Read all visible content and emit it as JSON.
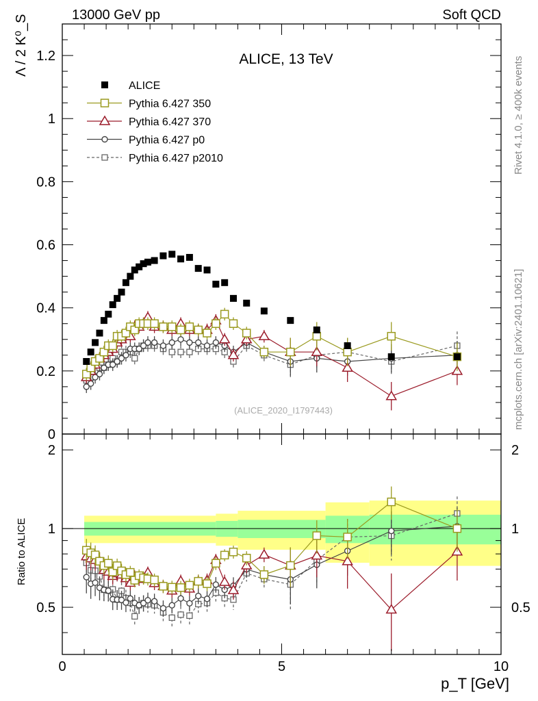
{
  "header": {
    "left": "13000 GeV pp",
    "right": "Soft QCD",
    "side_top": "Rivet 4.1.0, ≥ 400k events",
    "side_bottom": "mcplots.cern.ch [arXiv:2401.10621]",
    "analysis_id": "(ALICE_2020_I1797443)"
  },
  "colors": {
    "alice": "#000000",
    "p350": "#9a9a1f",
    "p370": "#9b1b2a",
    "p0": "#444444",
    "p2010": "#666666",
    "band_inner": "#99ff99",
    "band_outer": "#ffff88"
  },
  "chart_data": {
    "type": "scatter",
    "title": "ALICE, 13 TeV",
    "xlabel": "p_T [GeV]",
    "ylabel": "Λ / 2 K⁰_S",
    "ratio_ylabel": "Ratio to ALICE",
    "xlim": [
      0,
      10
    ],
    "ylim": [
      0,
      1.3
    ],
    "ratio_ylim": [
      0.33,
      2.3
    ],
    "xticks": [
      "0",
      "5",
      "10"
    ],
    "yticks": [
      "0.2",
      "0.4",
      "0.6",
      "0.8",
      "1",
      "1.2"
    ],
    "ratio_yticks": [
      "0.5",
      "1",
      "2"
    ],
    "legend": [
      "ALICE",
      "Pythia 6.427 350",
      "Pythia 6.427 370",
      "Pythia 6.427 p0",
      "Pythia 6.427 p2010"
    ],
    "x": [
      0.55,
      0.65,
      0.75,
      0.85,
      0.95,
      1.05,
      1.15,
      1.25,
      1.35,
      1.45,
      1.55,
      1.65,
      1.75,
      1.85,
      1.95,
      2.1,
      2.3,
      2.5,
      2.7,
      2.9,
      3.1,
      3.3,
      3.5,
      3.7,
      3.9,
      4.2,
      4.6,
      5.2,
      5.8,
      6.5,
      7.5,
      9.0
    ],
    "alice": [
      0.23,
      0.26,
      0.29,
      0.32,
      0.36,
      0.38,
      0.41,
      0.43,
      0.45,
      0.48,
      0.5,
      0.52,
      0.53,
      0.54,
      0.545,
      0.55,
      0.565,
      0.57,
      0.555,
      0.56,
      0.525,
      0.52,
      0.475,
      0.48,
      0.43,
      0.415,
      0.39,
      0.36,
      0.33,
      0.28,
      0.245,
      0.245
    ],
    "p350": [
      0.19,
      0.21,
      0.23,
      0.24,
      0.26,
      0.28,
      0.28,
      0.31,
      0.31,
      0.32,
      0.34,
      0.33,
      0.35,
      0.35,
      0.35,
      0.35,
      0.34,
      0.34,
      0.33,
      0.34,
      0.33,
      0.32,
      0.35,
      0.38,
      0.35,
      0.32,
      0.26,
      0.26,
      0.31,
      0.26,
      0.31,
      0.245
    ],
    "p370": [
      0.18,
      0.2,
      0.22,
      0.24,
      0.25,
      0.26,
      0.27,
      0.29,
      0.3,
      0.31,
      0.31,
      0.34,
      0.34,
      0.35,
      0.37,
      0.34,
      0.34,
      0.33,
      0.35,
      0.33,
      0.33,
      0.33,
      0.36,
      0.3,
      0.25,
      0.3,
      0.31,
      0.26,
      0.26,
      0.21,
      0.12,
      0.2
    ],
    "p0": [
      0.15,
      0.16,
      0.18,
      0.19,
      0.21,
      0.22,
      0.22,
      0.23,
      0.24,
      0.25,
      0.27,
      0.27,
      0.27,
      0.28,
      0.29,
      0.29,
      0.28,
      0.29,
      0.3,
      0.29,
      0.29,
      0.28,
      0.29,
      0.28,
      0.26,
      0.29,
      0.26,
      0.23,
      0.24,
      0.23,
      0.24,
      0.25
    ],
    "p2010": [
      0.17,
      0.18,
      0.2,
      0.21,
      0.21,
      0.22,
      0.24,
      0.23,
      0.26,
      0.26,
      0.26,
      0.24,
      0.27,
      0.28,
      0.28,
      0.28,
      0.27,
      0.26,
      0.26,
      0.26,
      0.27,
      0.27,
      0.27,
      0.26,
      0.23,
      0.28,
      0.25,
      0.22,
      0.25,
      0.26,
      0.23,
      0.28
    ],
    "sim_err": 0.02,
    "sim_err_high_pt": 0.045,
    "band_bins": [
      0.5,
      3.5,
      4.0,
      6.0,
      7.0,
      10.0
    ],
    "band_inner": [
      0.06,
      0.07,
      0.08,
      0.12,
      0.13
    ],
    "band_outer": [
      0.12,
      0.14,
      0.17,
      0.26,
      0.28
    ]
  }
}
